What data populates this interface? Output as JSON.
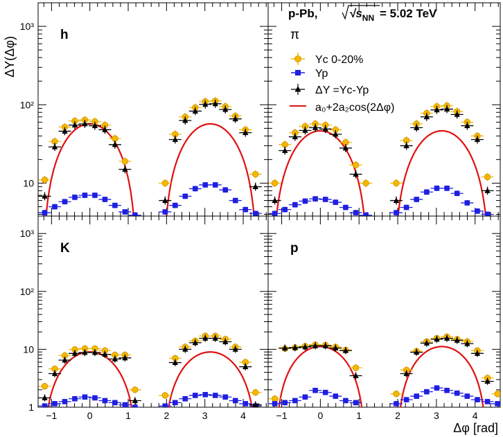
{
  "figure": {
    "collision_label": "p-Pb, ",
    "energy_symbol": "√s",
    "energy_subscript": "NN",
    "energy_value": " = 5.02 TeV",
    "y_axis_title": "ΔY(Δφ)",
    "x_axis_title": "Δφ [rad]"
  },
  "legend": {
    "entries": [
      {
        "key": "yc",
        "label": "Yc 0-20%",
        "color": "#f5b800"
      },
      {
        "key": "yp",
        "label": "Yp",
        "color": "#1f1fe0"
      },
      {
        "key": "dy",
        "label": "ΔY =Yc-Yp",
        "color": "#000000"
      },
      {
        "key": "fit",
        "label": "a₀+2a₂cos(2Δφ)",
        "color": "#e01010"
      }
    ]
  },
  "colors": {
    "yc": "#f5b800",
    "yc_edge": "#c98f00",
    "yp": "#1f1fe0",
    "dy": "#000000",
    "fit": "#e01010"
  },
  "chart_data": [
    {
      "type": "scatter",
      "panel_label": "h",
      "yscale": "log",
      "xlim": [
        -1.35,
        4.65
      ],
      "ylim": [
        3.8,
        2000
      ],
      "yticks": [
        10,
        100,
        1000
      ],
      "ytick_labels": [
        "10",
        "10²",
        "10³"
      ],
      "x": [
        -1.178,
        -0.916,
        -0.654,
        -0.393,
        -0.131,
        0.131,
        0.393,
        0.654,
        0.916,
        1.178,
        1.963,
        2.225,
        2.487,
        2.749,
        3.011,
        3.272,
        3.534,
        3.796,
        4.058,
        4.32
      ],
      "series": [
        {
          "name": "Yc 0-20%",
          "values": [
            11,
            34,
            52,
            62,
            64,
            61,
            55,
            37,
            19,
            null,
            10,
            42,
            70,
            92,
            110,
            112,
            95,
            72,
            48,
            13
          ]
        },
        {
          "name": "Yp",
          "values": [
            4.2,
            5.0,
            5.8,
            6.6,
            7.0,
            7.0,
            6.2,
            5.2,
            4.3,
            3.9,
            4.3,
            5.2,
            6.8,
            8.5,
            9.5,
            9.5,
            8.2,
            6.0,
            4.6,
            4.1
          ]
        },
        {
          "name": "ΔY =Yc-Yp",
          "values": [
            6.8,
            29,
            46,
            55,
            57,
            54,
            48,
            31,
            15,
            null,
            6,
            36,
            63,
            83,
            101,
            103,
            87,
            66,
            44,
            9
          ]
        }
      ],
      "fit": {
        "a0": 24.85,
        "a2": 16.1
      }
    },
    {
      "type": "scatter",
      "panel_label": "π",
      "yscale": "log",
      "xlim": [
        -1.35,
        4.65
      ],
      "ylim": [
        3.8,
        2000
      ],
      "yticks": [
        10,
        100,
        1000
      ],
      "ytick_labels": [
        "10",
        "10²",
        "10³"
      ],
      "x": [
        -1.178,
        -0.916,
        -0.654,
        -0.393,
        -0.131,
        0.131,
        0.393,
        0.654,
        0.916,
        1.178,
        1.963,
        2.225,
        2.487,
        2.749,
        3.011,
        3.272,
        3.534,
        3.796,
        4.058,
        4.32
      ],
      "series": [
        {
          "name": "Yc 0-20%",
          "values": [
            10,
            31,
            44,
            53,
            57,
            55,
            48,
            33,
            17,
            10,
            10,
            35,
            57,
            78,
            95,
            97,
            82,
            60,
            40,
            12
          ]
        },
        {
          "name": "Yp",
          "values": [
            4.1,
            4.6,
            5.3,
            5.9,
            6.3,
            6.2,
            5.7,
            4.9,
            4.2,
            3.9,
            4.2,
            4.9,
            6.2,
            7.7,
            8.6,
            8.6,
            7.4,
            5.6,
            4.4,
            4.0
          ]
        },
        {
          "name": "ΔY =Yc-Yp",
          "values": [
            6,
            26,
            39,
            47,
            51,
            49,
            42,
            28,
            13,
            null,
            6,
            30,
            51,
            70,
            86,
            88,
            75,
            54,
            36,
            8
          ]
        }
      ],
      "fit": {
        "a0": 20.5,
        "a2": 13.0
      }
    },
    {
      "type": "scatter",
      "panel_label": "K",
      "yscale": "log",
      "xlim": [
        -1.35,
        4.65
      ],
      "ylim": [
        1,
        2000
      ],
      "yticks": [
        1,
        10,
        100,
        1000
      ],
      "ytick_labels": [
        "1",
        "10",
        "10²",
        "10³"
      ],
      "x": [
        -1.178,
        -0.916,
        -0.654,
        -0.393,
        -0.131,
        0.131,
        0.393,
        0.654,
        0.916,
        1.178,
        1.963,
        2.225,
        2.487,
        2.749,
        3.011,
        3.272,
        3.534,
        3.796,
        4.058,
        4.32
      ],
      "series": [
        {
          "name": "Yc 0-20%",
          "values": [
            2.3,
            4.6,
            7.8,
            9.9,
            10.3,
            10.3,
            9.5,
            8.0,
            8.0,
            2.0,
            1.6,
            7.0,
            11,
            14,
            17,
            17,
            15,
            11,
            6,
            1.8
          ]
        },
        {
          "name": "Yp",
          "values": [
            1.05,
            1.15,
            1.25,
            1.4,
            1.5,
            1.45,
            1.3,
            1.2,
            1.1,
            1.0,
            1.05,
            1.2,
            1.4,
            1.6,
            1.65,
            1.6,
            1.5,
            1.3,
            1.15,
            1.05
          ]
        },
        {
          "name": "ΔY =Yc-Yp",
          "values": [
            1.45,
            3.8,
            6.5,
            8.5,
            8.8,
            8.8,
            8.2,
            6.8,
            7.1,
            1.3,
            null,
            5.9,
            10,
            13,
            15.5,
            15.5,
            13.5,
            10,
            5,
            1.1
          ]
        }
      ],
      "fit": {
        "a0": 3.9,
        "a2": 2.55
      }
    },
    {
      "type": "scatter",
      "panel_label": "p",
      "yscale": "log",
      "xlim": [
        -1.35,
        4.65
      ],
      "ylim": [
        1,
        2000
      ],
      "yticks": [
        1,
        10,
        100,
        1000
      ],
      "ytick_labels": [
        "1",
        "10",
        "10²",
        "10³"
      ],
      "x": [
        -1.178,
        -0.916,
        -0.654,
        -0.393,
        -0.131,
        0.131,
        0.393,
        0.654,
        0.916,
        1.178,
        1.963,
        2.225,
        2.487,
        2.749,
        3.011,
        3.272,
        3.534,
        3.796,
        4.058,
        4.32,
        4.58
      ],
      "series": [
        {
          "name": "Yc 0-20%",
          "values": [
            1.4,
            10.3,
            10.7,
            11.3,
            12.0,
            11.8,
            11.0,
            9.7,
            4.8,
            null,
            1.7,
            4.4,
            9.3,
            13.6,
            15.5,
            16.5,
            14.9,
            13.6,
            9.5,
            3.2,
            1.7
          ]
        },
        {
          "name": "Yp",
          "values": [
            1.15,
            1.2,
            1.3,
            1.5,
            1.95,
            1.8,
            1.55,
            1.3,
            1.2,
            null,
            1.15,
            1.35,
            1.55,
            1.85,
            2.15,
            1.95,
            1.75,
            1.55,
            1.35,
            1.25,
            1.15
          ]
        },
        {
          "name": "ΔY =Yc-Yp",
          "values": [
            null,
            10.5,
            10.7,
            11.0,
            11.5,
            11.5,
            10.5,
            9.5,
            3.5,
            null,
            null,
            3.8,
            8.9,
            12.8,
            14.9,
            15.5,
            14.3,
            12.5,
            8.5,
            2.8,
            null
          ]
        }
      ],
      "fit": {
        "a0": 4.55,
        "a2": 3.3
      }
    }
  ]
}
